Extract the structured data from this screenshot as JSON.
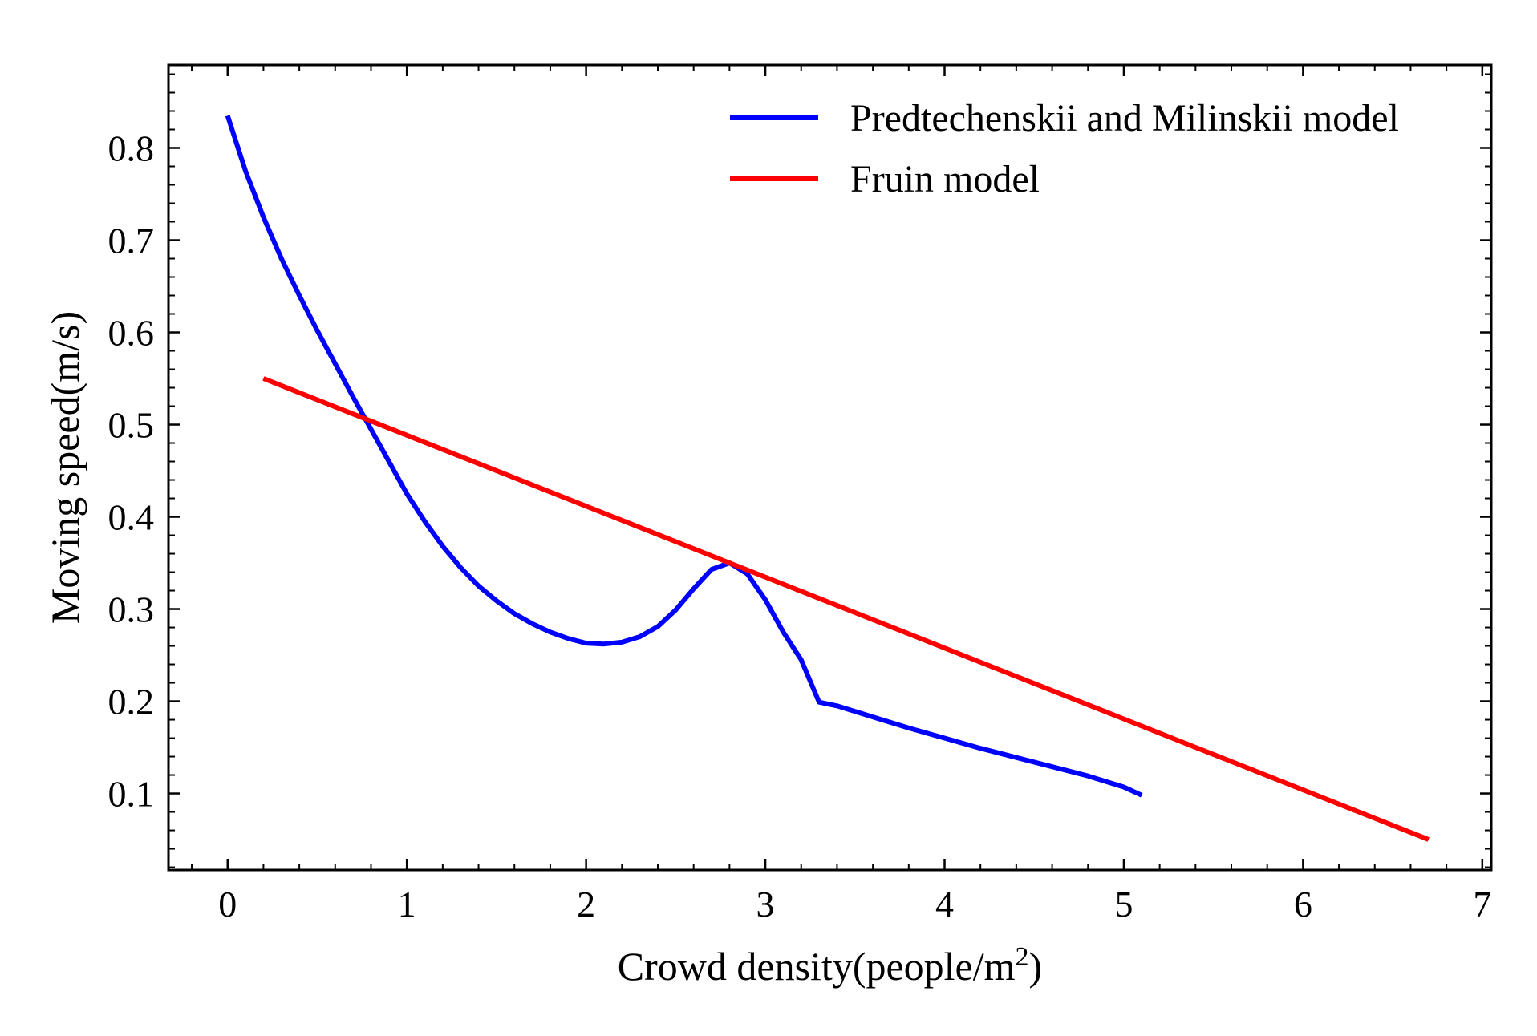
{
  "chart_data": {
    "type": "line",
    "title": "",
    "xlabel": "Crowd density(people/m",
    "xlabel_superscript": "2",
    "xlabel_suffix": ")",
    "ylabel": "Moving speed(m/s)",
    "xlim": [
      -0.33,
      7.05
    ],
    "ylim": [
      0.017,
      0.89
    ],
    "xticks": [
      0,
      1,
      2,
      3,
      4,
      5,
      6,
      7
    ],
    "xtick_labels": [
      "0",
      "1",
      "2",
      "3",
      "4",
      "5",
      "6",
      "7"
    ],
    "yticks": [
      0.1,
      0.2,
      0.3,
      0.4,
      0.5,
      0.6,
      0.7,
      0.8
    ],
    "ytick_labels": [
      "0.1",
      "0.2",
      "0.3",
      "0.4",
      "0.5",
      "0.6",
      "0.7",
      "0.8"
    ],
    "grid": false,
    "legend_position": "top-right",
    "series": [
      {
        "name": "Predtechenskii and Milinskii model",
        "color": "#0000ff",
        "x": [
          0,
          0.1,
          0.2,
          0.3,
          0.4,
          0.5,
          0.6,
          0.7,
          0.8,
          0.9,
          1.0,
          1.1,
          1.2,
          1.3,
          1.4,
          1.5,
          1.6,
          1.7,
          1.8,
          1.9,
          2.0,
          2.1,
          2.2,
          2.3,
          2.4,
          2.5,
          2.6,
          2.7,
          2.8,
          2.9,
          3.0,
          3.1,
          3.2,
          3.3,
          3.4,
          3.6,
          3.8,
          4.0,
          4.2,
          4.4,
          4.6,
          4.8,
          5.0,
          5.1
        ],
        "y": [
          0.835,
          0.775,
          0.725,
          0.68,
          0.64,
          0.602,
          0.566,
          0.53,
          0.495,
          0.46,
          0.425,
          0.395,
          0.368,
          0.345,
          0.325,
          0.309,
          0.295,
          0.284,
          0.275,
          0.268,
          0.263,
          0.262,
          0.264,
          0.27,
          0.281,
          0.299,
          0.322,
          0.343,
          0.35,
          0.338,
          0.31,
          0.275,
          0.245,
          0.199,
          0.195,
          0.183,
          0.171,
          0.16,
          0.149,
          0.139,
          0.129,
          0.119,
          0.107,
          0.098
        ]
      },
      {
        "name": "Fruin model",
        "color": "#ff0000",
        "x": [
          0.2,
          6.7
        ],
        "y": [
          0.55,
          0.05
        ]
      }
    ]
  }
}
